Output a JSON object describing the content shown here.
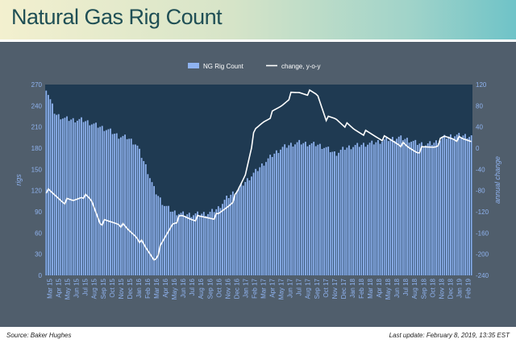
{
  "title": "Natural Gas Rig Count",
  "footer": {
    "source": "Source: Baker Hughes",
    "last_update": "Last update: February 8, 2019, 13:35 EST"
  },
  "colors": {
    "bars": "#8fb3f0",
    "line": "#ffffff",
    "plot_bg": "#1f3a52",
    "panel_bg": "#505e6c",
    "axis_text": "#8fb3f0"
  },
  "chart_data": {
    "type": "bar",
    "title": "",
    "xlabel": "",
    "ylabel": "rigs",
    "y2label": "annual change",
    "ylim": [
      0,
      270
    ],
    "y2lim": [
      -240,
      120
    ],
    "yticks": [
      0,
      30,
      60,
      90,
      120,
      150,
      180,
      210,
      240,
      270
    ],
    "y2ticks": [
      -240,
      -200,
      -160,
      -120,
      -80,
      -40,
      0,
      40,
      80,
      120
    ],
    "x_tick_labels": [
      "Mar 15",
      "Apr 15",
      "May 15",
      "Jun 15",
      "Jul 15",
      "Aug 15",
      "Sep 15",
      "Oct 15",
      "Nov 15",
      "Dec 15",
      "Jan 16",
      "Feb 16",
      "Mar 16",
      "Apr 16",
      "May 16",
      "Jun 16",
      "Jul 16",
      "Aug 16",
      "Sep 16",
      "Oct 16",
      "Nov 16",
      "Dec 16",
      "Jan 17",
      "Feb 17",
      "Mar 17",
      "Apr 17",
      "May 17",
      "Jun 17",
      "Jul 17",
      "Aug 17",
      "Sep 17",
      "Oct 17",
      "Nov 17",
      "Dec 17",
      "Jan 18",
      "Feb 18",
      "Mar 18",
      "Apr 18",
      "May 18",
      "Jun 18",
      "Jul 18",
      "Aug 18",
      "Sep 18",
      "Oct 18",
      "Nov 18",
      "Dec 18",
      "Jan 19",
      "Feb 19"
    ],
    "legend": {
      "position": "top-center",
      "entries": [
        "NG Rig Count",
        "change, y-o-y"
      ]
    },
    "grid": false,
    "series": [
      {
        "name": "NG Rig Count",
        "type": "bar",
        "axis": "left",
        "monthly_approx": [
          265,
          228,
          222,
          220,
          220,
          215,
          210,
          205,
          197,
          195,
          185,
          155,
          120,
          100,
          90,
          87,
          86,
          87,
          88,
          95,
          110,
          120,
          132,
          145,
          158,
          170,
          180,
          185,
          188,
          186,
          185,
          180,
          172,
          180,
          183,
          185,
          187,
          190,
          193,
          195,
          192,
          187,
          185,
          188,
          195,
          198,
          198,
          197
        ]
      },
      {
        "name": "change, y-o-y",
        "type": "line",
        "axis": "right",
        "monthly_approx": [
          -80,
          -90,
          -100,
          -100,
          -88,
          -100,
          -140,
          -140,
          -140,
          -155,
          -165,
          -190,
          -210,
          -175,
          -140,
          -130,
          -132,
          -132,
          -130,
          -128,
          -110,
          -90,
          -50,
          30,
          50,
          65,
          80,
          100,
          105,
          105,
          100,
          55,
          55,
          45,
          35,
          30,
          25,
          20,
          15,
          10,
          0,
          -5,
          0,
          5,
          20,
          20,
          15,
          15
        ]
      }
    ]
  }
}
